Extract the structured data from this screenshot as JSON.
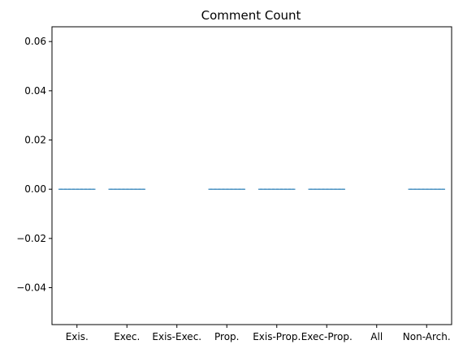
{
  "chart_data": {
    "type": "box",
    "title": "Comment Count",
    "xlabel": "",
    "ylabel": "",
    "categories": [
      "Exis.",
      "Exec.",
      "Exis-Exec.",
      "Prop.",
      "Exis-Prop.",
      "Exec-Prop.",
      "All",
      "Non-Arch."
    ],
    "values": [
      0,
      0,
      null,
      0,
      0,
      0,
      null,
      0
    ],
    "ylim": [
      -0.055,
      0.066
    ],
    "yticks": [
      -0.04,
      -0.02,
      0.0,
      0.02,
      0.04,
      0.06
    ],
    "ytick_labels": [
      "−0.04",
      "−0.02",
      "0.00",
      "0.02",
      "0.04",
      "0.06"
    ],
    "grid": false,
    "box_color": "#1f77b4"
  }
}
